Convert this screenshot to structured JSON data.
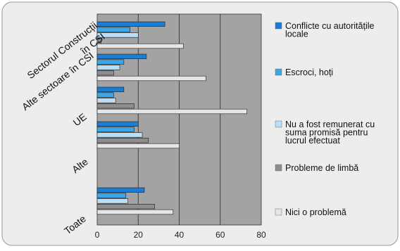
{
  "chart_data": {
    "type": "bar",
    "orientation": "horizontal",
    "categories": [
      "Sectorul Construcții\nîn CSI",
      "Alte sectoare în CSI",
      "UE",
      "Alte",
      "Toate"
    ],
    "series": [
      {
        "name": "Conflicte cu autoritățile\nlocale",
        "color": "#1a7fd4",
        "values": [
          33,
          24,
          13,
          20,
          23
        ]
      },
      {
        "name": "Escroci, hoți",
        "color": "#3fa6e6",
        "values": [
          16,
          13,
          8,
          18,
          14
        ]
      },
      {
        "name": "Nu a fost remunerat cu\nsuma promisă pentru\nlucrul efectuat",
        "color": "#b9def5",
        "values": [
          20,
          11,
          9,
          22,
          15
        ]
      },
      {
        "name": "Probleme de limbă",
        "color": "#8e8e8e",
        "values": [
          2,
          8,
          18,
          25,
          28
        ]
      },
      {
        "name": "Nici o problemă",
        "color": "#e6e6e6",
        "values": [
          42,
          53,
          73,
          40,
          37
        ]
      }
    ],
    "xlim": [
      0,
      80
    ],
    "xticks": [
      "0",
      "20",
      "40",
      "60",
      "80"
    ],
    "grid": true,
    "legend_position": "right",
    "colors": {
      "plot_bg": "#a3a3a3",
      "panel_bg": "#ededed",
      "panel_border": "#9a9a9a"
    }
  }
}
